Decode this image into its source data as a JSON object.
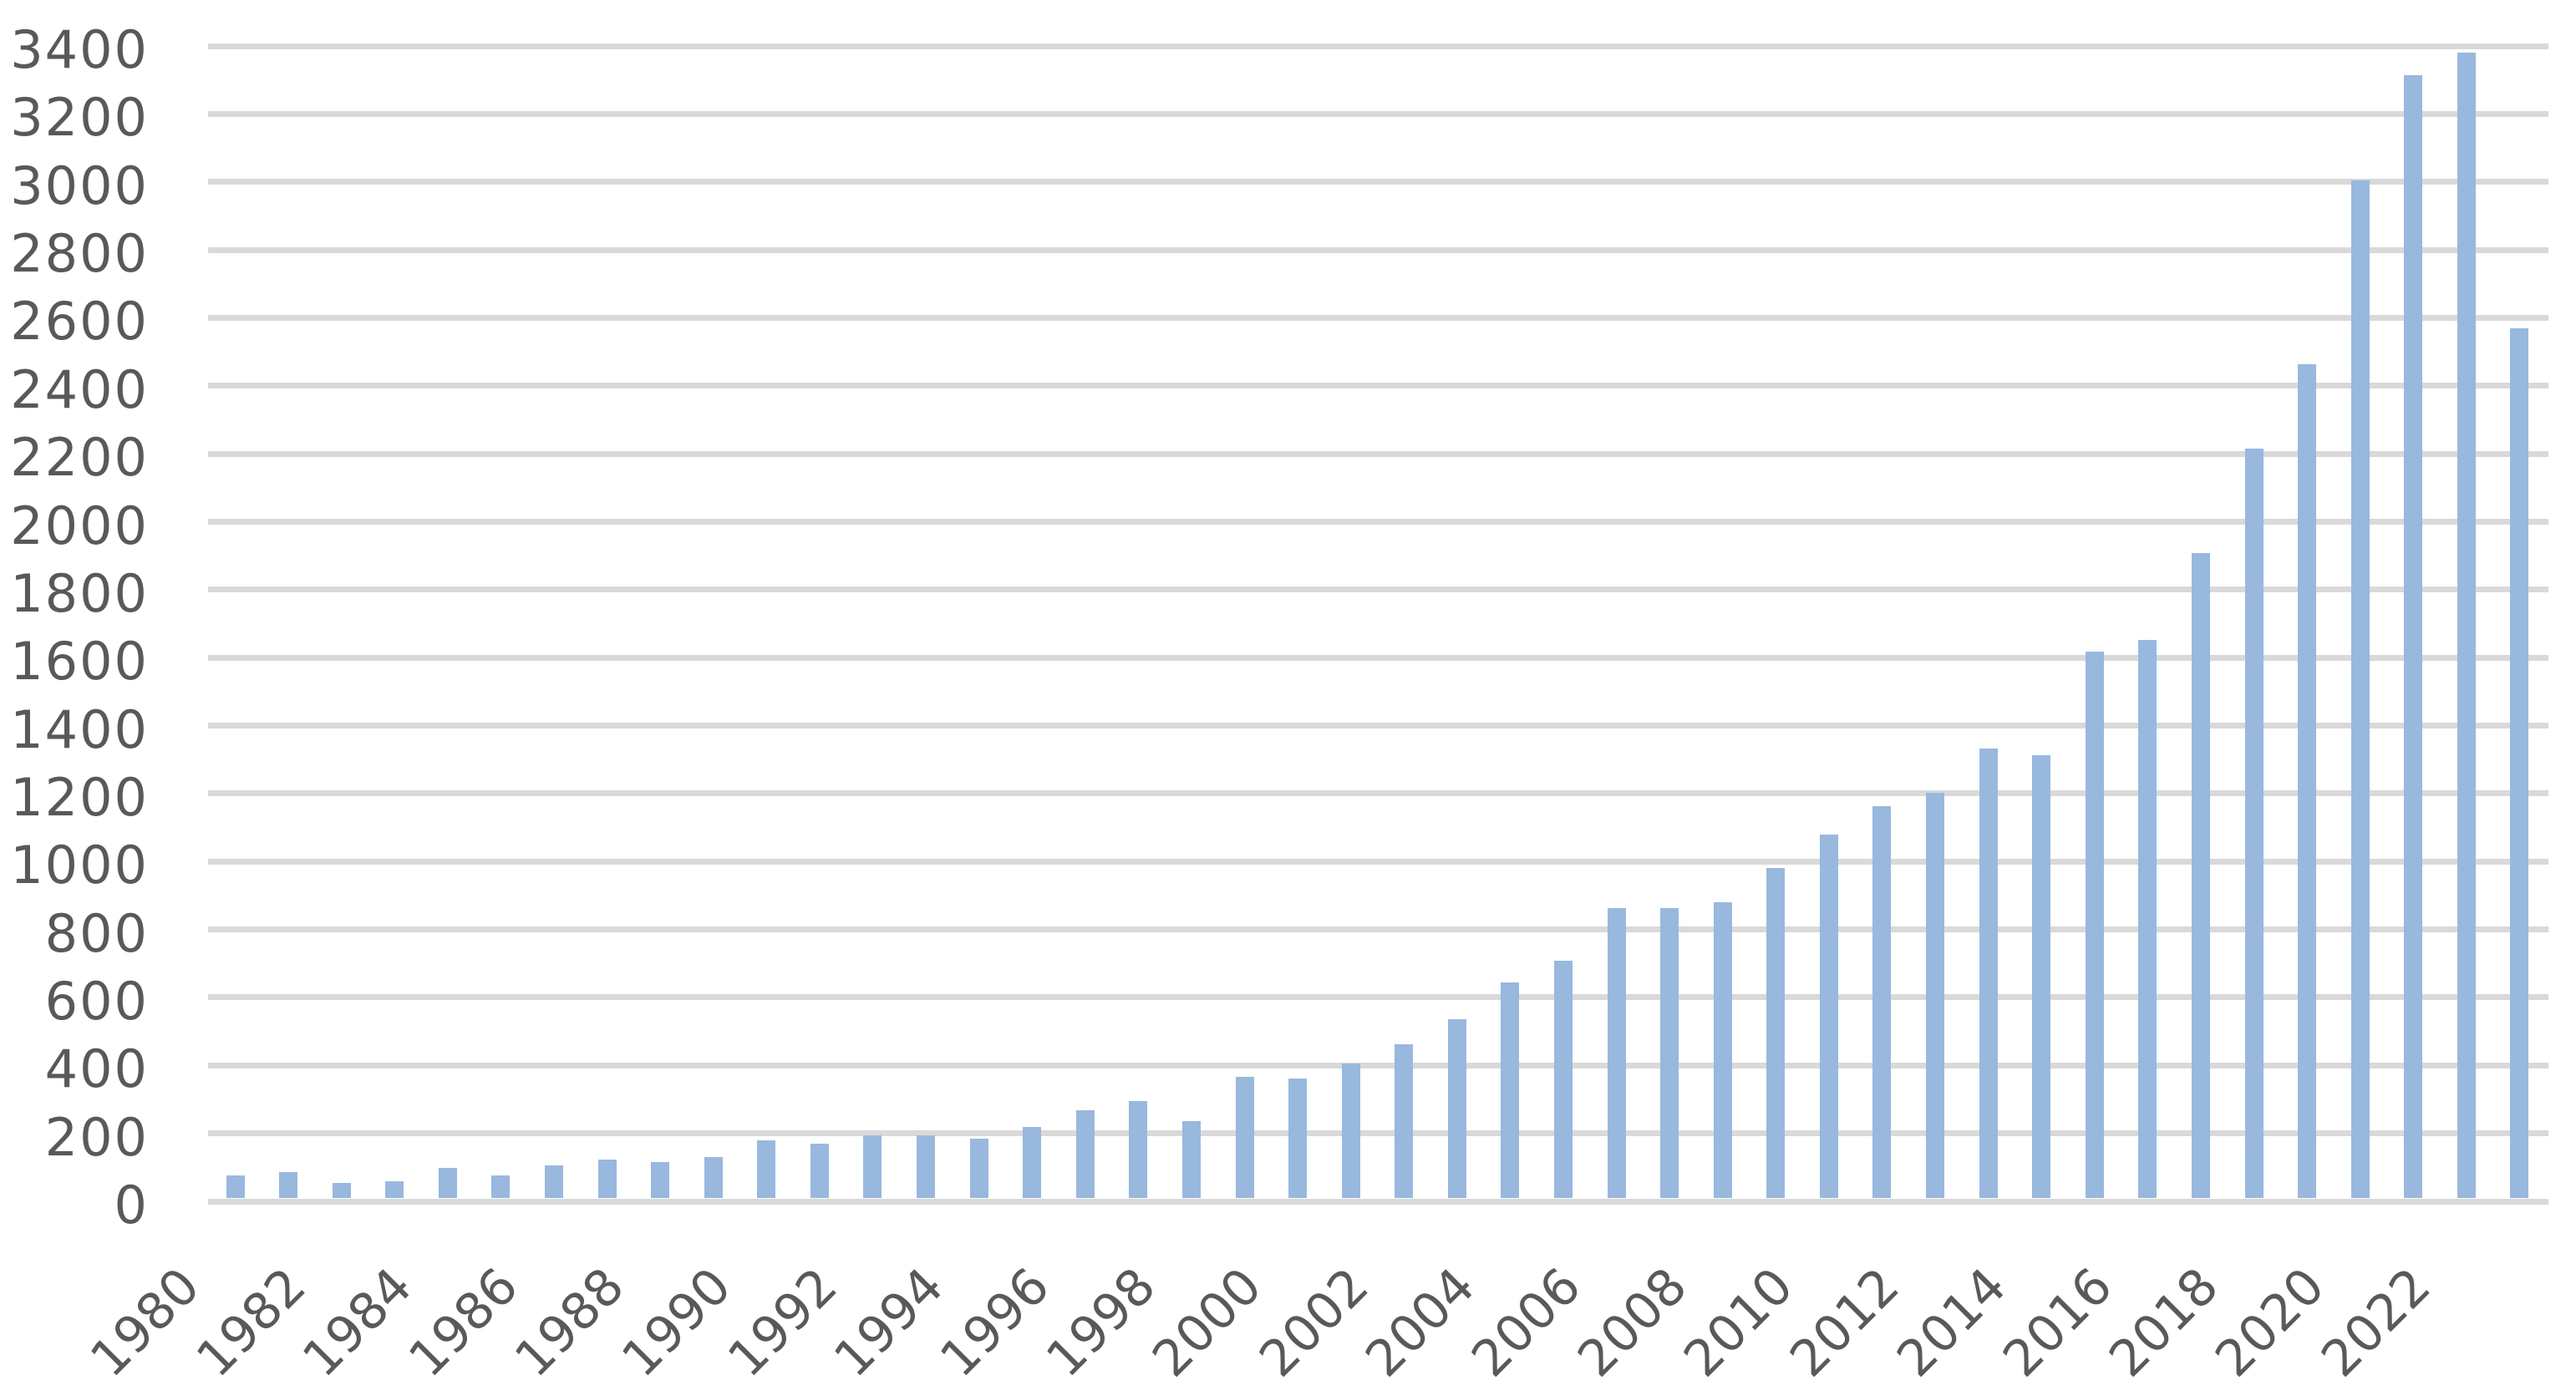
{
  "chart_data": {
    "type": "bar",
    "title": "",
    "xlabel": "",
    "ylabel": "",
    "categories": [
      "1980",
      "1981",
      "1982",
      "1983",
      "1984",
      "1985",
      "1986",
      "1987",
      "1988",
      "1989",
      "1990",
      "1991",
      "1992",
      "1993",
      "1994",
      "1995",
      "1996",
      "1997",
      "1998",
      "1999",
      "2000",
      "2001",
      "2002",
      "2003",
      "2004",
      "2005",
      "2006",
      "2007",
      "2008",
      "2009",
      "2010",
      "2011",
      "2012",
      "2013",
      "2014",
      "2015",
      "2016",
      "2017",
      "2018",
      "2019",
      "2020",
      "2021",
      "2022",
      "2023"
    ],
    "values": [
      76,
      87,
      54,
      60,
      99,
      75,
      105,
      124,
      116,
      130,
      180,
      170,
      193,
      193,
      185,
      218,
      268,
      296,
      236,
      367,
      361,
      406,
      461,
      537,
      643,
      708,
      862,
      862,
      879,
      982,
      1080,
      1162,
      1202,
      1332,
      1312,
      1618,
      1652,
      1907,
      2214,
      2464,
      3004,
      3314,
      3380,
      2570
    ],
    "x_tick_labels": [
      "1980",
      "1982",
      "1984",
      "1986",
      "1988",
      "1990",
      "1992",
      "1994",
      "1996",
      "1998",
      "2000",
      "2002",
      "2004",
      "2006",
      "2008",
      "2010",
      "2012",
      "2014",
      "2016",
      "2018",
      "2020",
      "2022"
    ],
    "y_ticks": [
      "0",
      "200",
      "400",
      "600",
      "800",
      "1000",
      "1200",
      "1400",
      "1600",
      "1800",
      "2000",
      "2200",
      "2400",
      "2600",
      "2800",
      "3000",
      "3200",
      "3400"
    ],
    "ylim": [
      0,
      3400
    ],
    "y_tick_step": 200,
    "grid": "horizontal",
    "legend": "none",
    "colors": {
      "bar": "#98B8DE",
      "gridline": "#D9D9D9",
      "tick_label": "#595959",
      "background": "#FFFFFF"
    }
  }
}
